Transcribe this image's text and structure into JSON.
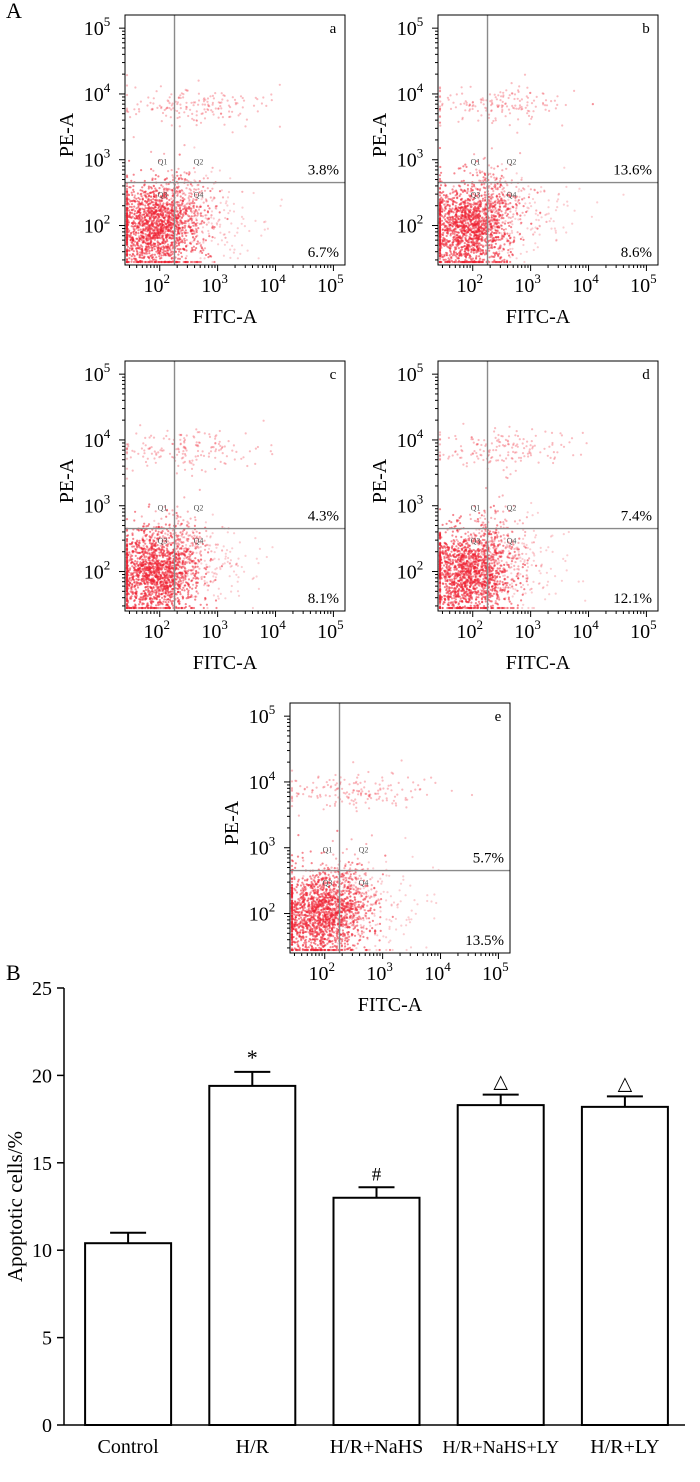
{
  "panel_labels": {
    "A": "A",
    "B": "B"
  },
  "colors": {
    "dots": "#ee2233",
    "gate": "#8a8a8a",
    "axis": "#000000",
    "bar_fill": "#ffffff"
  },
  "chart_data": [
    {
      "type": "scatter",
      "id": "a",
      "panel": "a",
      "xlabel": "FITC-A",
      "ylabel": "PE-A",
      "xscale": "log",
      "yscale": "log",
      "x_ticks": [
        "10",
        "10",
        "10",
        "10"
      ],
      "x_tick_exponents": [
        "2",
        "3",
        "4",
        "5"
      ],
      "y_ticks": [
        "10",
        "10",
        "10",
        "10"
      ],
      "y_tick_exponents": [
        "2",
        "3",
        "4",
        "5"
      ],
      "quadrants": [
        "Q1",
        "Q2",
        "Q3",
        "Q4"
      ],
      "upper_right_percent": "3.8%",
      "lower_right_percent": "6.7%"
    },
    {
      "type": "scatter",
      "id": "b",
      "panel": "b",
      "xlabel": "FITC-A",
      "ylabel": "PE-A",
      "xscale": "log",
      "yscale": "log",
      "x_ticks": [
        "10",
        "10",
        "10",
        "10"
      ],
      "x_tick_exponents": [
        "2",
        "3",
        "4",
        "5"
      ],
      "y_ticks": [
        "10",
        "10",
        "10",
        "10"
      ],
      "y_tick_exponents": [
        "2",
        "3",
        "4",
        "5"
      ],
      "quadrants": [
        "Q1",
        "Q2",
        "Q3",
        "Q4"
      ],
      "upper_right_percent": "13.6%",
      "lower_right_percent": "8.6%"
    },
    {
      "type": "scatter",
      "id": "c",
      "panel": "c",
      "xlabel": "FITC-A",
      "ylabel": "PE-A",
      "xscale": "log",
      "yscale": "log",
      "x_ticks": [
        "10",
        "10",
        "10",
        "10"
      ],
      "x_tick_exponents": [
        "2",
        "3",
        "4",
        "5"
      ],
      "y_ticks": [
        "10",
        "10",
        "10",
        "10"
      ],
      "y_tick_exponents": [
        "2",
        "3",
        "4",
        "5"
      ],
      "quadrants": [
        "Q1",
        "Q2",
        "Q3",
        "Q4"
      ],
      "upper_right_percent": "4.3%",
      "lower_right_percent": "8.1%"
    },
    {
      "type": "scatter",
      "id": "d",
      "panel": "d",
      "xlabel": "FITC-A",
      "ylabel": "PE-A",
      "xscale": "log",
      "yscale": "log",
      "x_ticks": [
        "10",
        "10",
        "10",
        "10"
      ],
      "x_tick_exponents": [
        "2",
        "3",
        "4",
        "5"
      ],
      "y_ticks": [
        "10",
        "10",
        "10",
        "10"
      ],
      "y_tick_exponents": [
        "2",
        "3",
        "4",
        "5"
      ],
      "quadrants": [
        "Q1",
        "Q2",
        "Q3",
        "Q4"
      ],
      "upper_right_percent": "7.4%",
      "lower_right_percent": "12.1%"
    },
    {
      "type": "scatter",
      "id": "e",
      "panel": "e",
      "xlabel": "FITC-A",
      "ylabel": "PE-A",
      "xscale": "log",
      "yscale": "log",
      "x_ticks": [
        "10",
        "10",
        "10",
        "10"
      ],
      "x_tick_exponents": [
        "2",
        "3",
        "4",
        "5"
      ],
      "y_ticks": [
        "10",
        "10",
        "10",
        "10"
      ],
      "y_tick_exponents": [
        "2",
        "3",
        "4",
        "5"
      ],
      "quadrants": [
        "Q1",
        "Q2",
        "Q3",
        "Q4"
      ],
      "upper_right_percent": "5.7%",
      "lower_right_percent": "13.5%"
    },
    {
      "type": "bar",
      "id": "bar",
      "categories": [
        "Control",
        "H/R",
        "H/R+NaHS",
        "H/R+NaHS+LY",
        "H/R+LY"
      ],
      "values": [
        10.4,
        19.4,
        13.0,
        18.3,
        18.2
      ],
      "errors": [
        0.6,
        0.8,
        0.6,
        0.6,
        0.6
      ],
      "annotations": [
        "",
        "*",
        "#",
        "△",
        "△"
      ],
      "ylabel": "Apoptotic cells/%",
      "ylim": [
        0,
        25
      ],
      "yticks": [
        "0",
        "5",
        "10",
        "15",
        "20",
        "25"
      ]
    }
  ]
}
